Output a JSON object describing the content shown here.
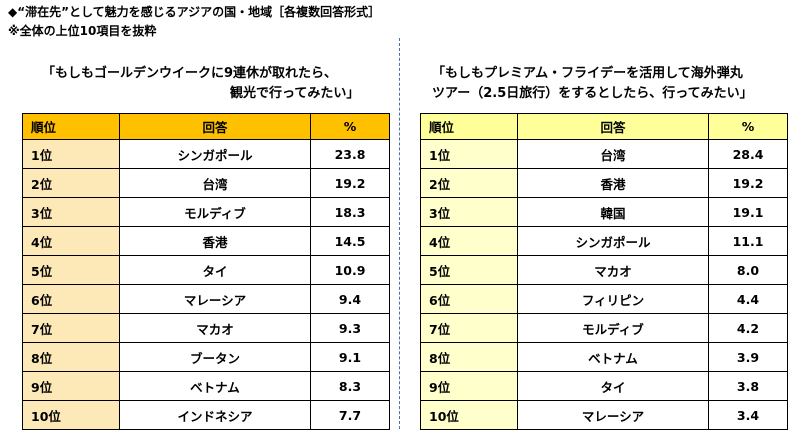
{
  "header": {
    "title": "◆“滞在先”として魅力を感じるアジアの国・地域［各複数回答形式］",
    "note": "※全体の上位10項目を抜粋"
  },
  "tables": [
    {
      "caption": [
        "「もしもゴールデンウイークに9連休が取れたら、",
        "観光で行ってみたい」"
      ],
      "columns": [
        "順位",
        "回答",
        "%"
      ],
      "rows": [
        [
          "1位",
          "シンガポール",
          "23.8"
        ],
        [
          "2位",
          "台湾",
          "19.2"
        ],
        [
          "3位",
          "モルディブ",
          "18.3"
        ],
        [
          "4位",
          "香港",
          "14.5"
        ],
        [
          "5位",
          "タイ",
          "10.9"
        ],
        [
          "6位",
          "マレーシア",
          "9.4"
        ],
        [
          "7位",
          "マカオ",
          "9.3"
        ],
        [
          "8位",
          "ブータン",
          "9.1"
        ],
        [
          "9位",
          "ベトナム",
          "8.3"
        ],
        [
          "10位",
          "インドネシア",
          "7.7"
        ]
      ]
    },
    {
      "caption": [
        "「もしもプレミアム・フライデーを活用して海外弾丸",
        "ツアー（2.5日旅行）をするとしたら、行ってみたい」"
      ],
      "columns": [
        "順位",
        "回答",
        "%"
      ],
      "rows": [
        [
          "1位",
          "台湾",
          "28.4"
        ],
        [
          "2位",
          "香港",
          "19.2"
        ],
        [
          "3位",
          "韓国",
          "19.1"
        ],
        [
          "4位",
          "シンガポール",
          "11.1"
        ],
        [
          "5位",
          "マカオ",
          "8.0"
        ],
        [
          "6位",
          "フィリピン",
          "4.4"
        ],
        [
          "7位",
          "モルディブ",
          "4.2"
        ],
        [
          "8位",
          "ベトナム",
          "3.9"
        ],
        [
          "9位",
          "タイ",
          "3.8"
        ],
        [
          "10位",
          "マレーシア",
          "3.4"
        ]
      ]
    }
  ]
}
